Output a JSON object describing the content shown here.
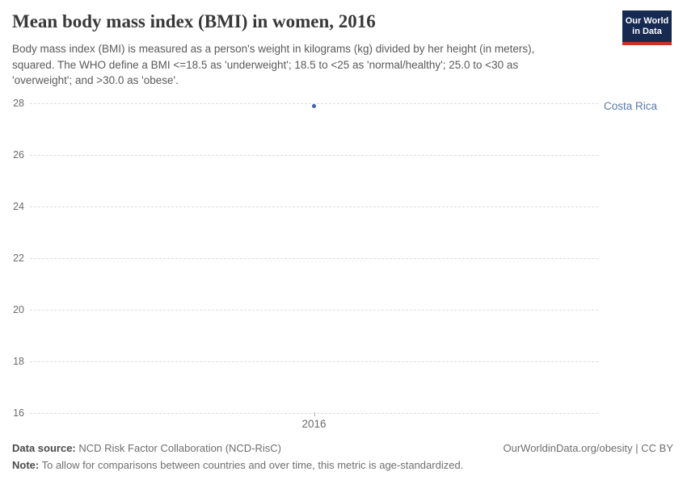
{
  "header": {
    "title": "Mean body mass index (BMI) in women, 2016",
    "subtitle": "Body mass index (BMI) is measured as a person's weight in kilograms (kg) divided by her height (in meters), squared. The WHO define a BMI <=18.5 as 'underweight'; 18.5 to <25 as 'normal/healthy'; 25.0 to <30 as 'overweight'; and >30.0 as 'obese'.",
    "logo": {
      "line1": "Our World",
      "line2": "in Data",
      "bg_color": "#162a52",
      "accent_color": "#c5332b"
    }
  },
  "chart_data": {
    "type": "scatter",
    "title": "Mean body mass index (BMI) in women, 2016",
    "x": [
      2016
    ],
    "xticks": [
      "2016"
    ],
    "series": [
      {
        "name": "Costa Rica",
        "values": [
          27.9
        ],
        "color": "#3a66a5",
        "label_color": "#5878ab"
      }
    ],
    "xlabel": "",
    "ylabel": "",
    "ylim": [
      16,
      28
    ],
    "yticks": [
      16,
      18,
      20,
      22,
      24,
      26,
      28
    ],
    "grid": "horizontal dashed, light gray",
    "legend_position": "right of plot, entity label at point height"
  },
  "footer": {
    "datasource_label": "Data source:",
    "datasource_value": " NCD Risk Factor Collaboration (NCD-RisC)",
    "note_label": "Note:",
    "note_value": " To allow for comparisons between countries and over time, this metric is age-standardized.",
    "attribution": "OurWorldinData.org/obesity | CC BY"
  }
}
